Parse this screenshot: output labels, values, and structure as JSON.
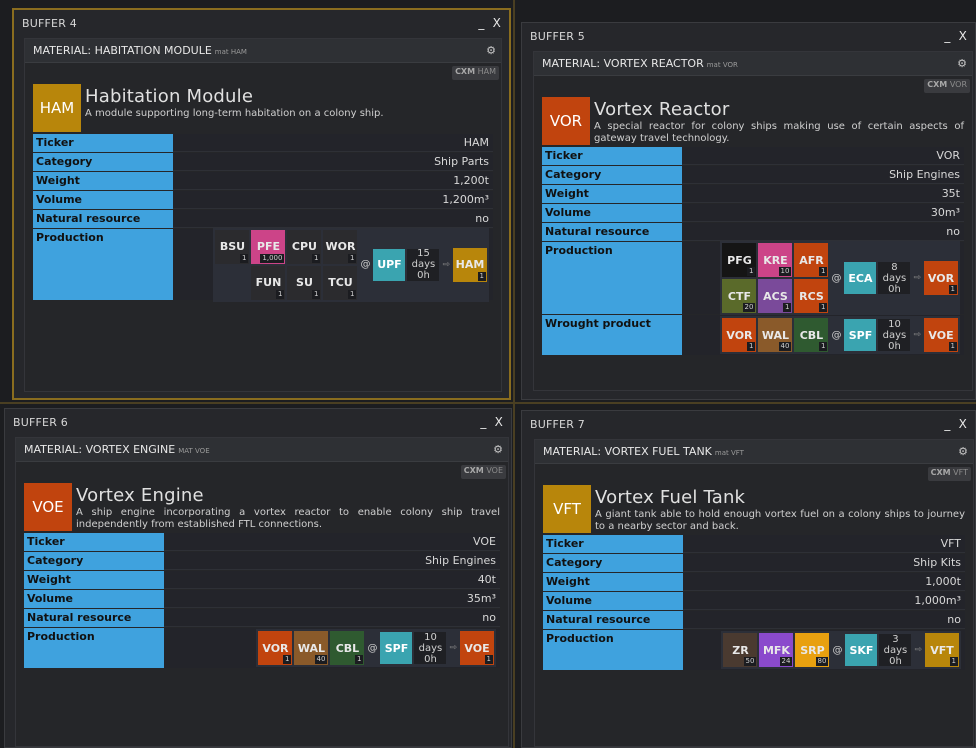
{
  "controls": {
    "minimize": "_",
    "close": "X"
  },
  "cx_prefix": "CXM",
  "buffers": [
    {
      "title": "BUFFER 4",
      "panel_name": "MATERIAL: HABITATION MODULE",
      "panel_sub": "mat HAM",
      "cx_ticker": "HAM",
      "ticker": "HAM",
      "ticker_color": "#b8860b",
      "name": "Habitation Module",
      "desc": "A module supporting long-term habitation on a colony ship.",
      "rows": [
        {
          "label": "Ticker",
          "value": "HAM"
        },
        {
          "label": "Category",
          "value": "Ship Parts"
        },
        {
          "label": "Weight",
          "value": "1,200t"
        },
        {
          "label": "Volume",
          "value": "1,200m³"
        },
        {
          "label": "Natural resource",
          "value": "no"
        }
      ],
      "production_label": "Production",
      "recipe": {
        "inputs": [
          [
            {
              "t": "BSU",
              "n": "1",
              "c": "#2b2b2e"
            },
            {
              "t": "PFE",
              "n": "1,000",
              "c": "#cc4488"
            },
            {
              "t": "CPU",
              "n": "1",
              "c": "#2b2b2e"
            },
            {
              "t": "WOR",
              "n": "1",
              "c": "#2b2b2e"
            }
          ],
          [
            {
              "t": "FUN",
              "n": "1",
              "c": "#2b2b2e"
            },
            {
              "t": "SU",
              "n": "1",
              "c": "#2b2b2e"
            },
            {
              "t": "TCU",
              "n": "1",
              "c": "#2b2b2e"
            }
          ]
        ],
        "at": "@",
        "building": "UPF",
        "duration": [
          "15",
          "days",
          "0h"
        ],
        "arrow": "⇨",
        "output": {
          "t": "HAM",
          "n": "1",
          "c": "#b8860b"
        }
      }
    },
    {
      "title": "BUFFER 5",
      "panel_name": "MATERIAL: VORTEX REACTOR",
      "panel_sub": "mat VOR",
      "cx_ticker": "VOR",
      "ticker": "VOR",
      "ticker_color": "#c1440e",
      "name": "Vortex Reactor",
      "desc": "A special reactor for colony ships making use of certain aspects of gateway travel technology.",
      "rows": [
        {
          "label": "Ticker",
          "value": "VOR"
        },
        {
          "label": "Category",
          "value": "Ship Engines"
        },
        {
          "label": "Weight",
          "value": "35t"
        },
        {
          "label": "Volume",
          "value": "30m³"
        },
        {
          "label": "Natural resource",
          "value": "no"
        }
      ],
      "production_label": "Production",
      "recipe": {
        "inputs": [
          [
            {
              "t": "PFG",
              "n": "1",
              "c": "#151515"
            },
            {
              "t": "KRE",
              "n": "10",
              "c": "#cc4488"
            },
            {
              "t": "AFR",
              "n": "1",
              "c": "#c1440e"
            }
          ],
          [
            {
              "t": "CTF",
              "n": "20",
              "c": "#5a6a2a"
            },
            {
              "t": "ACS",
              "n": "1",
              "c": "#7a4a9a"
            },
            {
              "t": "RCS",
              "n": "1",
              "c": "#c1440e"
            }
          ]
        ],
        "at": "@",
        "building": "ECA",
        "duration": [
          "8 days",
          "0h"
        ],
        "arrow": "⇨",
        "output": {
          "t": "VOR",
          "n": "1",
          "c": "#c1440e"
        }
      },
      "wrought_label": "Wrought product",
      "wrought": {
        "inputs": [
          [
            {
              "t": "VOR",
              "n": "1",
              "c": "#c1440e"
            },
            {
              "t": "WAL",
              "n": "40",
              "c": "#8a5a2a"
            },
            {
              "t": "CBL",
              "n": "1",
              "c": "#2f5a30"
            }
          ]
        ],
        "at": "@",
        "building": "SPF",
        "duration": [
          "10",
          "days",
          "0h"
        ],
        "arrow": "⇨",
        "output": {
          "t": "VOE",
          "n": "1",
          "c": "#c1440e"
        }
      }
    },
    {
      "title": "BUFFER 6",
      "panel_name": "MATERIAL: VORTEX ENGINE",
      "panel_sub": "MAT VOE",
      "cx_ticker": "VOE",
      "ticker": "VOE",
      "ticker_color": "#c1440e",
      "name": "Vortex Engine",
      "desc": "A ship engine incorporating a vortex reactor to enable colony ship travel independently from established FTL connections.",
      "rows": [
        {
          "label": "Ticker",
          "value": "VOE"
        },
        {
          "label": "Category",
          "value": "Ship Engines"
        },
        {
          "label": "Weight",
          "value": "40t"
        },
        {
          "label": "Volume",
          "value": "35m³"
        },
        {
          "label": "Natural resource",
          "value": "no"
        }
      ],
      "production_label": "Production",
      "recipe": {
        "inputs": [
          [
            {
              "t": "VOR",
              "n": "1",
              "c": "#c1440e"
            },
            {
              "t": "WAL",
              "n": "40",
              "c": "#8a5a2a"
            },
            {
              "t": "CBL",
              "n": "1",
              "c": "#2f5a30"
            }
          ]
        ],
        "at": "@",
        "building": "SPF",
        "duration": [
          "10",
          "days",
          "0h"
        ],
        "arrow": "⇨",
        "output": {
          "t": "VOE",
          "n": "1",
          "c": "#c1440e"
        }
      }
    },
    {
      "title": "BUFFER 7",
      "panel_name": "MATERIAL: VORTEX FUEL TANK",
      "panel_sub": "mat VFT",
      "cx_ticker": "VFT",
      "ticker": "VFT",
      "ticker_color": "#b8860b",
      "name": "Vortex Fuel Tank",
      "desc": "A giant tank able to hold enough vortex fuel on a colony ships to journey to a nearby sector and back.",
      "rows": [
        {
          "label": "Ticker",
          "value": "VFT"
        },
        {
          "label": "Category",
          "value": "Ship Kits"
        },
        {
          "label": "Weight",
          "value": "1,000t"
        },
        {
          "label": "Volume",
          "value": "1,000m³"
        },
        {
          "label": "Natural resource",
          "value": "no"
        }
      ],
      "production_label": "Production",
      "recipe": {
        "inputs": [
          [
            {
              "t": "ZR",
              "n": "50",
              "c": "#4a3a30"
            },
            {
              "t": "MFK",
              "n": "24",
              "c": "#8a4acc"
            },
            {
              "t": "SRP",
              "n": "80",
              "c": "#e8a010"
            }
          ]
        ],
        "at": "@",
        "building": "SKF",
        "duration": [
          "3 days",
          "0h"
        ],
        "arrow": "⇨",
        "output": {
          "t": "VFT",
          "n": "1",
          "c": "#b8860b"
        }
      }
    }
  ]
}
